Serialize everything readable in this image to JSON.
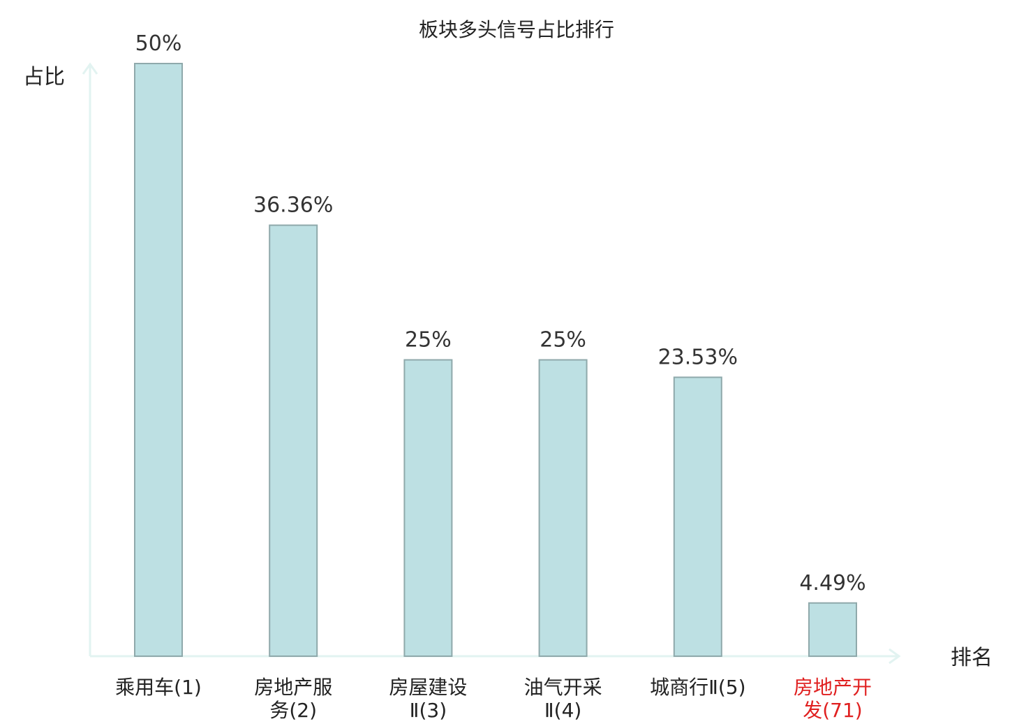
{
  "chart_data": {
    "type": "bar",
    "title": "板块多头信号占比排行",
    "ylabel": "占比",
    "xlabel": "排名",
    "ylim": [
      0,
      50
    ],
    "grid": false,
    "categories": [
      {
        "lines": [
          "乘用车(1)"
        ],
        "highlight": false
      },
      {
        "lines": [
          "房地产服",
          "务(2)"
        ],
        "highlight": false
      },
      {
        "lines": [
          "房屋建设",
          "Ⅱ(3)"
        ],
        "highlight": false
      },
      {
        "lines": [
          "油气开采",
          "Ⅱ(4)"
        ],
        "highlight": false
      },
      {
        "lines": [
          "城商行Ⅱ(5)"
        ],
        "highlight": false
      },
      {
        "lines": [
          "房地产开",
          "发(71)"
        ],
        "highlight": true
      }
    ],
    "values": [
      50,
      36.36,
      25,
      25,
      23.53,
      4.49
    ],
    "value_labels": [
      "50%",
      "36.36%",
      "25%",
      "25%",
      "23.53%",
      "4.49%"
    ],
    "colors": {
      "bar_fill": "#bde0e3",
      "bar_stroke": "#8fa9ab",
      "axis": "#e2f3f1",
      "highlight": "#e02020"
    }
  }
}
